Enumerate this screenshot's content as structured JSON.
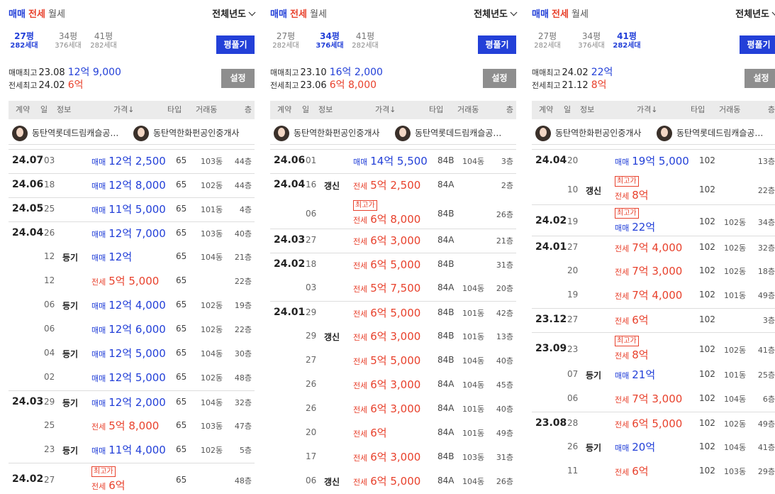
{
  "common": {
    "tabs": {
      "sale": "매매",
      "jeonse": "전세",
      "monthly": "월세"
    },
    "year_select": "전체년도",
    "flatten_label": "평풀기",
    "settings_label": "설정",
    "high_sale_label": "매매최고",
    "high_jeonse_label": "전세최고",
    "headers": {
      "contract": "계약",
      "day": "일",
      "info": "정보",
      "price": "가격↓",
      "type": "타입",
      "building": "거래동",
      "floor": "층"
    },
    "colors": {
      "sale": "#2340d8",
      "jeonse": "#e8412c",
      "button_blue": "#2340d8",
      "button_gray": "#8e8e8e"
    },
    "sizes": [
      {
        "pyeong": "27평",
        "households": "282세대"
      },
      {
        "pyeong": "34평",
        "households": "376세대"
      },
      {
        "pyeong": "41평",
        "households": "282세대"
      }
    ]
  },
  "panels": [
    {
      "active_size": 0,
      "high_sale": {
        "date": "23.08",
        "amount": "12억 9,000"
      },
      "high_jeonse": {
        "date": "24.02",
        "amount": "6억"
      },
      "agents": [
        "동탄역롯데드림캐슬공…",
        "동탄역한화펀공인중개사"
      ],
      "rows": [
        {
          "month": "24.07",
          "day": "03",
          "info": "",
          "tag": "",
          "kind": "매매",
          "price": "12억 2,500",
          "type": "65",
          "building": "103동",
          "floor": "44층",
          "grp": true
        },
        {
          "month": "24.06",
          "day": "18",
          "info": "",
          "tag": "",
          "kind": "매매",
          "price": "12억 8,000",
          "type": "65",
          "building": "102동",
          "floor": "44층",
          "grp": true
        },
        {
          "month": "24.05",
          "day": "25",
          "info": "",
          "tag": "",
          "kind": "매매",
          "price": "11억 5,000",
          "type": "65",
          "building": "101동",
          "floor": "4층",
          "grp": true
        },
        {
          "month": "24.04",
          "day": "26",
          "info": "",
          "tag": "",
          "kind": "매매",
          "price": "12억 7,000",
          "type": "65",
          "building": "103동",
          "floor": "40층",
          "grp": true
        },
        {
          "month": "",
          "day": "12",
          "info": "등기",
          "tag": "",
          "kind": "매매",
          "price": "12억",
          "type": "65",
          "building": "104동",
          "floor": "21층"
        },
        {
          "month": "",
          "day": "12",
          "info": "",
          "tag": "",
          "kind": "전세",
          "price": "5억 5,000",
          "type": "65",
          "building": "",
          "floor": "22층"
        },
        {
          "month": "",
          "day": "06",
          "info": "등기",
          "tag": "",
          "kind": "매매",
          "price": "12억 4,000",
          "type": "65",
          "building": "102동",
          "floor": "19층"
        },
        {
          "month": "",
          "day": "06",
          "info": "",
          "tag": "",
          "kind": "매매",
          "price": "12억 6,000",
          "type": "65",
          "building": "102동",
          "floor": "22층"
        },
        {
          "month": "",
          "day": "04",
          "info": "등기",
          "tag": "",
          "kind": "매매",
          "price": "12억 5,000",
          "type": "65",
          "building": "104동",
          "floor": "30층"
        },
        {
          "month": "",
          "day": "02",
          "info": "",
          "tag": "",
          "kind": "매매",
          "price": "12억 5,000",
          "type": "65",
          "building": "102동",
          "floor": "48층"
        },
        {
          "month": "24.03",
          "day": "29",
          "info": "등기",
          "tag": "",
          "kind": "매매",
          "price": "12억 2,000",
          "type": "65",
          "building": "104동",
          "floor": "32층",
          "grp": true
        },
        {
          "month": "",
          "day": "25",
          "info": "",
          "tag": "",
          "kind": "전세",
          "price": "5억 8,000",
          "type": "65",
          "building": "103동",
          "floor": "47층"
        },
        {
          "month": "",
          "day": "23",
          "info": "등기",
          "tag": "",
          "kind": "매매",
          "price": "11억 4,000",
          "type": "65",
          "building": "102동",
          "floor": "5층"
        },
        {
          "month": "24.02",
          "day": "27",
          "info": "",
          "tag": "최고가",
          "kind": "전세",
          "price": "6억",
          "type": "65",
          "building": "",
          "floor": "48층",
          "grp": true
        }
      ]
    },
    {
      "active_size": 1,
      "high_sale": {
        "date": "23.10",
        "amount": "16억 2,000"
      },
      "high_jeonse": {
        "date": "23.06",
        "amount": "6억 8,000"
      },
      "agents": [
        "동탄역한화펀공인중개사",
        "동탄역롯데드림캐슬공…"
      ],
      "rows": [
        {
          "month": "24.06",
          "day": "01",
          "info": "",
          "tag": "",
          "kind": "매매",
          "price": "14억 5,500",
          "type": "84B",
          "building": "104동",
          "floor": "3층",
          "grp": true
        },
        {
          "month": "24.04",
          "day": "16",
          "info": "갱신",
          "tag": "",
          "kind": "전세",
          "price": "5억 2,500",
          "type": "84A",
          "building": "",
          "floor": "2층",
          "grp": true
        },
        {
          "month": "",
          "day": "06",
          "info": "",
          "tag": "최고가",
          "kind": "전세",
          "price": "6억 8,000",
          "type": "84B",
          "building": "",
          "floor": "26층"
        },
        {
          "month": "24.03",
          "day": "27",
          "info": "",
          "tag": "",
          "kind": "전세",
          "price": "6억 3,000",
          "type": "84A",
          "building": "",
          "floor": "21층",
          "grp": true
        },
        {
          "month": "24.02",
          "day": "18",
          "info": "",
          "tag": "",
          "kind": "전세",
          "price": "6억 5,000",
          "type": "84B",
          "building": "",
          "floor": "31층",
          "grp": true
        },
        {
          "month": "",
          "day": "03",
          "info": "",
          "tag": "",
          "kind": "전세",
          "price": "5억 7,500",
          "type": "84A",
          "building": "104동",
          "floor": "20층"
        },
        {
          "month": "24.01",
          "day": "29",
          "info": "",
          "tag": "",
          "kind": "전세",
          "price": "6억 5,000",
          "type": "84B",
          "building": "101동",
          "floor": "42층",
          "grp": true
        },
        {
          "month": "",
          "day": "29",
          "info": "갱신",
          "tag": "",
          "kind": "전세",
          "price": "6억 3,000",
          "type": "84B",
          "building": "101동",
          "floor": "13층"
        },
        {
          "month": "",
          "day": "27",
          "info": "",
          "tag": "",
          "kind": "전세",
          "price": "5억 5,000",
          "type": "84B",
          "building": "104동",
          "floor": "40층"
        },
        {
          "month": "",
          "day": "26",
          "info": "",
          "tag": "",
          "kind": "전세",
          "price": "6억 3,000",
          "type": "84A",
          "building": "104동",
          "floor": "45층"
        },
        {
          "month": "",
          "day": "26",
          "info": "",
          "tag": "",
          "kind": "전세",
          "price": "6억 3,000",
          "type": "84A",
          "building": "101동",
          "floor": "40층"
        },
        {
          "month": "",
          "day": "20",
          "info": "",
          "tag": "",
          "kind": "전세",
          "price": "6억",
          "type": "84A",
          "building": "101동",
          "floor": "49층"
        },
        {
          "month": "",
          "day": "17",
          "info": "",
          "tag": "",
          "kind": "전세",
          "price": "6억 3,000",
          "type": "84B",
          "building": "103동",
          "floor": "31층"
        },
        {
          "month": "",
          "day": "06",
          "info": "갱신",
          "tag": "",
          "kind": "전세",
          "price": "6억 5,000",
          "type": "84A",
          "building": "104동",
          "floor": "26층"
        }
      ]
    },
    {
      "active_size": 2,
      "high_sale": {
        "date": "24.02",
        "amount": "22억"
      },
      "high_jeonse": {
        "date": "21.12",
        "amount": "8억"
      },
      "agents": [
        "동탄역한화펀공인중개사",
        "동탄역롯데드림캐슬공…"
      ],
      "rows": [
        {
          "month": "24.04",
          "day": "20",
          "info": "",
          "tag": "",
          "kind": "매매",
          "price": "19억 5,000",
          "type": "102",
          "building": "",
          "floor": "13층",
          "grp": true
        },
        {
          "month": "",
          "day": "10",
          "info": "갱신",
          "tag": "최고가",
          "kind": "전세",
          "price": "8억",
          "type": "102",
          "building": "",
          "floor": "22층"
        },
        {
          "month": "24.02",
          "day": "19",
          "info": "",
          "tag": "최고가",
          "kind": "매매",
          "price": "22억",
          "type": "102",
          "building": "102동",
          "floor": "34층",
          "grp": true
        },
        {
          "month": "24.01",
          "day": "27",
          "info": "",
          "tag": "",
          "kind": "전세",
          "price": "7억 4,000",
          "type": "102",
          "building": "102동",
          "floor": "32층",
          "grp": true
        },
        {
          "month": "",
          "day": "20",
          "info": "",
          "tag": "",
          "kind": "전세",
          "price": "7억 3,000",
          "type": "102",
          "building": "102동",
          "floor": "18층"
        },
        {
          "month": "",
          "day": "19",
          "info": "",
          "tag": "",
          "kind": "전세",
          "price": "7억 4,000",
          "type": "102",
          "building": "101동",
          "floor": "49층"
        },
        {
          "month": "23.12",
          "day": "27",
          "info": "",
          "tag": "",
          "kind": "전세",
          "price": "6억",
          "type": "102",
          "building": "",
          "floor": "3층",
          "grp": true
        },
        {
          "month": "23.09",
          "day": "23",
          "info": "",
          "tag": "최고가",
          "kind": "전세",
          "price": "8억",
          "type": "102",
          "building": "102동",
          "floor": "41층",
          "grp": true
        },
        {
          "month": "",
          "day": "07",
          "info": "등기",
          "tag": "",
          "kind": "매매",
          "price": "21억",
          "type": "102",
          "building": "101동",
          "floor": "25층"
        },
        {
          "month": "",
          "day": "06",
          "info": "",
          "tag": "",
          "kind": "전세",
          "price": "7억 3,000",
          "type": "102",
          "building": "104동",
          "floor": "6층"
        },
        {
          "month": "23.08",
          "day": "28",
          "info": "",
          "tag": "",
          "kind": "전세",
          "price": "6억 5,000",
          "type": "102",
          "building": "102동",
          "floor": "49층",
          "grp": true
        },
        {
          "month": "",
          "day": "26",
          "info": "등기",
          "tag": "",
          "kind": "매매",
          "price": "20억",
          "type": "102",
          "building": "104동",
          "floor": "41층"
        },
        {
          "month": "",
          "day": "11",
          "info": "",
          "tag": "",
          "kind": "전세",
          "price": "6억",
          "type": "102",
          "building": "103동",
          "floor": "29층"
        }
      ]
    }
  ]
}
